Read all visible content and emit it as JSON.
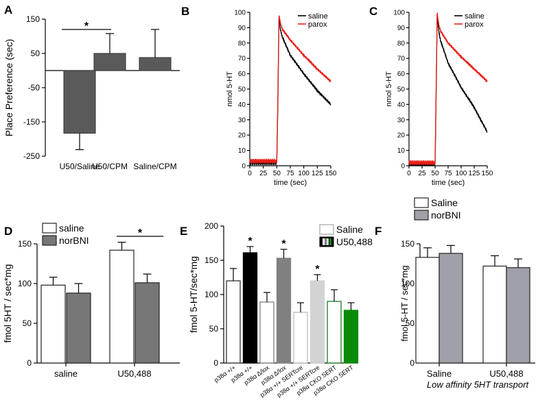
{
  "chart_data": [
    {
      "panel": "A",
      "type": "bar",
      "title": "",
      "ylabel": "Place Preference (sec)",
      "xlabel": "",
      "ylim": [
        -250,
        150
      ],
      "yticks": [
        150,
        50,
        -50,
        -150,
        -250
      ],
      "categories": [
        "U50/Saline",
        "U50/CPM",
        "Saline/CPM"
      ],
      "values": [
        -183,
        50,
        38
      ],
      "errors": [
        48,
        58,
        82
      ],
      "annotations": [
        {
          "text": "*",
          "between": [
            "U50/Saline",
            "U50/CPM"
          ]
        }
      ]
    },
    {
      "panel": "B",
      "type": "line",
      "ylabel": "nmol 5-HT",
      "xlabel": "time (sec)",
      "xlim": [
        0,
        150
      ],
      "ylim": [
        0,
        100
      ],
      "xticks": [
        0,
        25,
        50,
        75,
        100,
        125,
        150
      ],
      "yticks": [
        0,
        10,
        20,
        30,
        40,
        50,
        60,
        70,
        80,
        90,
        100
      ],
      "legend": [
        "saline",
        "parox"
      ],
      "series": [
        {
          "name": "saline",
          "color": "#000000",
          "x": [
            0,
            50,
            52,
            54,
            55,
            56,
            60,
            75,
            100,
            125,
            150
          ],
          "y": [
            2,
            2,
            40,
            96,
            94,
            90,
            84,
            72,
            60,
            49,
            40
          ]
        },
        {
          "name": "parox",
          "color": "#e8201a",
          "x": [
            0,
            50,
            52,
            54,
            55,
            56,
            60,
            75,
            100,
            125,
            150
          ],
          "y": [
            3,
            3,
            45,
            98,
            96,
            94,
            89,
            82,
            72,
            63,
            55
          ]
        }
      ]
    },
    {
      "panel": "C",
      "type": "line",
      "ylabel": "nmol 5-HT",
      "xlabel": "time (sec)",
      "xlim": [
        0,
        150
      ],
      "ylim": [
        0,
        100
      ],
      "xticks": [
        0,
        25,
        50,
        75,
        100,
        125,
        150
      ],
      "yticks": [
        0,
        10,
        20,
        30,
        40,
        50,
        60,
        70,
        80,
        90,
        100
      ],
      "legend": [
        "saline",
        "parox"
      ],
      "series": [
        {
          "name": "saline",
          "color": "#000000",
          "x": [
            0,
            50,
            52,
            54,
            55,
            57,
            60,
            75,
            100,
            125,
            150
          ],
          "y": [
            1,
            1,
            45,
            99,
            94,
            88,
            82,
            67,
            51,
            38,
            22
          ]
        },
        {
          "name": "parox",
          "color": "#e8201a",
          "x": [
            0,
            50,
            52,
            54,
            55,
            57,
            60,
            75,
            100,
            125,
            150
          ],
          "y": [
            2,
            2,
            50,
            100,
            97,
            92,
            88,
            80,
            71,
            63,
            55
          ]
        }
      ]
    },
    {
      "panel": "D",
      "type": "bar",
      "ylabel": "fmol 5HT / sec*mg",
      "xlabel": "",
      "ylim": [
        0,
        150
      ],
      "yticks": [
        0,
        50,
        100,
        150
      ],
      "categories": [
        "saline",
        "U50,488"
      ],
      "legend": [
        "saline",
        "norBNI"
      ],
      "series": [
        {
          "name": "saline",
          "color": "#ffffff",
          "values": [
            98,
            142
          ],
          "errors": [
            10,
            10
          ]
        },
        {
          "name": "norBNI",
          "color": "#777777",
          "values": [
            88,
            101
          ],
          "errors": [
            12,
            11
          ]
        }
      ],
      "annotations": [
        {
          "text": "*",
          "group": "U50,488"
        }
      ]
    },
    {
      "panel": "E",
      "type": "bar",
      "ylabel": "fmol 5-HT/sec*mg",
      "xlabel": "",
      "ylim": [
        0,
        200
      ],
      "yticks": [
        0,
        50,
        100,
        150,
        200
      ],
      "legend": [
        "Saline",
        "U50,488"
      ],
      "categories": [
        "p38α +/+",
        "p38α +/+",
        "p38α Δ/lox",
        "p38α Δ/lox",
        "p38α +/+ SERTcre",
        "p38α +/+ SERTcre",
        "p38α CKO SERT",
        "p38α CKO SERT"
      ],
      "values": [
        120,
        161,
        89,
        153,
        74,
        120,
        90,
        77
      ],
      "errors": [
        18,
        9,
        14,
        13,
        14,
        9,
        17,
        11
      ],
      "fills": [
        "#ffffff",
        "#000000",
        "#ffffff",
        "#808080",
        "#ffffff",
        "#d3d3d3",
        "#ffffff",
        "#0a8a0a"
      ],
      "strokes": [
        "#333333",
        "#000000",
        "#808080",
        "#808080",
        "#bbbbbb",
        "#d3d3d3",
        "#1a7a1a",
        "#0a8a0a"
      ],
      "significant": [
        false,
        true,
        false,
        true,
        false,
        true,
        false,
        false
      ]
    },
    {
      "panel": "F",
      "type": "bar",
      "ylabel": "fmol 5-HT / sec*mg",
      "xlabel": "Low affinity 5HT transport",
      "ylim": [
        0,
        150
      ],
      "yticks": [
        0,
        50,
        100,
        150
      ],
      "categories": [
        "Saline",
        "U50,488"
      ],
      "legend": [
        "Saline",
        "norBNI"
      ],
      "series": [
        {
          "name": "Saline",
          "color": "#ffffff",
          "values": [
            133,
            122
          ],
          "errors": [
            12,
            13
          ]
        },
        {
          "name": "norBNI",
          "color": "#a0a0a8",
          "values": [
            138,
            120
          ],
          "errors": [
            10,
            11
          ]
        }
      ]
    }
  ],
  "panel_labels": [
    "A",
    "B",
    "C",
    "D",
    "E",
    "F"
  ],
  "colors": {
    "saline_line": "#000000",
    "parox_line": "#e8201a",
    "dark_bar": "#5a5a5a"
  }
}
